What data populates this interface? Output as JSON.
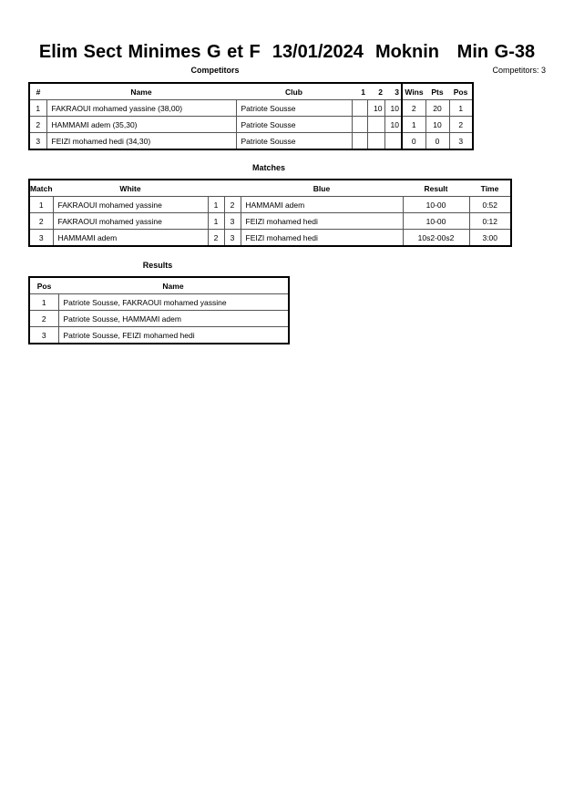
{
  "title": "Elim Sect Minimes G et F  13/01/2024  Moknin   Min G-38",
  "competitors": {
    "heading": "Competitors",
    "count_label": "Competitors: 3",
    "headers": [
      "#",
      "Name",
      "Club",
      "1",
      "2",
      "3",
      "Wins",
      "Pts",
      "Pos"
    ],
    "rows": [
      [
        "1",
        "FAKRAOUI mohamed yassine  (38,00)",
        "Patriote Sousse",
        "",
        "10",
        "10",
        "2",
        "20",
        "1"
      ],
      [
        "2",
        "HAMMAMI adem  (35,30)",
        "Patriote Sousse",
        "",
        "",
        "10",
        "1",
        "10",
        "2"
      ],
      [
        "3",
        "FEIZI mohamed hedi  (34,30)",
        "Patriote Sousse",
        "",
        "",
        "",
        "0",
        "0",
        "3"
      ]
    ]
  },
  "matches": {
    "heading": "Matches",
    "headers": [
      "Match",
      "White",
      "Blue",
      "Result",
      "Time"
    ],
    "rows": [
      [
        "1",
        "FAKRAOUI mohamed yassine",
        "1",
        "2",
        "HAMMAMI adem",
        "10-00",
        "0:52"
      ],
      [
        "2",
        "FAKRAOUI mohamed yassine",
        "1",
        "3",
        "FEIZI mohamed hedi",
        "10-00",
        "0:12"
      ],
      [
        "3",
        "HAMMAMI adem",
        "2",
        "3",
        "FEIZI mohamed hedi",
        "10s2-00s2",
        "3:00"
      ]
    ]
  },
  "results": {
    "heading": "Results",
    "headers": [
      "Pos",
      "Name"
    ],
    "rows": [
      [
        "1",
        "Patriote Sousse, FAKRAOUI mohamed yassine"
      ],
      [
        "2",
        "Patriote Sousse, HAMMAMI adem"
      ],
      [
        "3",
        "Patriote Sousse, FEIZI mohamed hedi"
      ]
    ]
  }
}
